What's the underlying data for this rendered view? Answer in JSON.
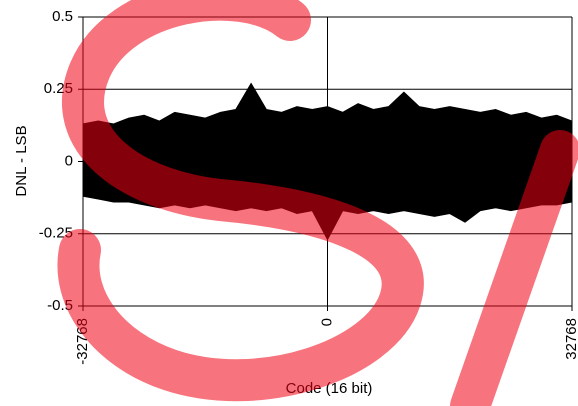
{
  "chart_data": {
    "type": "line",
    "x_label": "Code (16 bit)",
    "y_label": "DNL - LSB",
    "x": [
      -32768,
      -30720,
      -28672,
      -26624,
      -24576,
      -22528,
      -20480,
      -18432,
      -16384,
      -14336,
      -12288,
      -10240,
      -8192,
      -6144,
      -4096,
      -2048,
      0,
      2048,
      4096,
      6144,
      8192,
      10240,
      12288,
      14336,
      16384,
      18432,
      20480,
      22528,
      24576,
      26624,
      28672,
      30720,
      32768
    ],
    "series": [
      {
        "color": "#000000",
        "values": [
          0.13,
          0.14,
          0.13,
          0.15,
          0.16,
          0.14,
          0.17,
          0.16,
          0.15,
          0.17,
          0.18,
          0.27,
          0.18,
          0.17,
          0.19,
          0.18,
          0.19,
          0.17,
          0.2,
          0.18,
          0.19,
          0.24,
          0.19,
          0.18,
          0.19,
          0.18,
          0.17,
          0.18,
          0.16,
          0.17,
          0.15,
          0.16,
          0.14
        ]
      },
      {
        "color": "#000000",
        "values": [
          -0.12,
          -0.13,
          -0.14,
          -0.14,
          -0.15,
          -0.16,
          -0.15,
          -0.16,
          -0.15,
          -0.16,
          -0.17,
          -0.16,
          -0.17,
          -0.16,
          -0.18,
          -0.17,
          -0.27,
          -0.17,
          -0.18,
          -0.17,
          -0.18,
          -0.17,
          -0.18,
          -0.19,
          -0.18,
          -0.21,
          -0.17,
          -0.16,
          -0.17,
          -0.16,
          -0.15,
          -0.15,
          -0.14
        ]
      }
    ],
    "xlim": [
      -32768,
      32768
    ],
    "xticks": [
      -32768,
      0,
      32768
    ],
    "ylim": [
      -0.5,
      0.5
    ],
    "yticks": [
      0.5,
      0.25,
      0,
      -0.25,
      -0.5
    ],
    "grid": true
  }
}
